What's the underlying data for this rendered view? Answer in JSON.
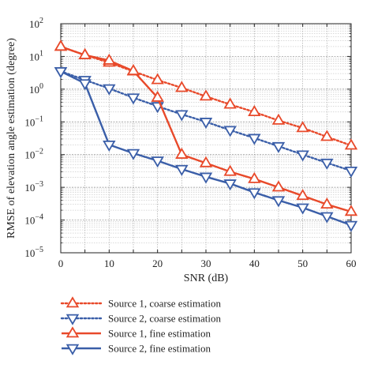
{
  "chart_data": {
    "type": "line",
    "title": "",
    "xlabel": "SNR (dB)",
    "ylabel": "RMSE of elevation angle estimation (degree)",
    "xlim": [
      0,
      60
    ],
    "ylim_exp": [
      -5,
      2
    ],
    "y_scale": "log",
    "grid": true,
    "x_ticks": [
      0,
      10,
      20,
      30,
      40,
      50,
      60
    ],
    "y_ticks": [
      {
        "base": "10",
        "exp": "2"
      },
      {
        "base": "10",
        "exp": "1"
      },
      {
        "base": "10",
        "exp": "0"
      },
      {
        "base": "10",
        "exp": "−1"
      },
      {
        "base": "10",
        "exp": "−2"
      },
      {
        "base": "10",
        "exp": "−3"
      },
      {
        "base": "10",
        "exp": "−4"
      },
      {
        "base": "10",
        "exp": "−5"
      }
    ],
    "x": [
      0,
      5,
      10,
      15,
      20,
      25,
      30,
      35,
      40,
      45,
      50,
      55,
      60
    ],
    "legend_position": "below",
    "series": [
      {
        "name": "Source 1, coarse estimation",
        "color": "#e8492a",
        "line": "dotted",
        "marker": "triangle-up",
        "values": [
          20,
          11,
          6.5,
          3.5,
          1.9,
          1.1,
          0.6,
          0.34,
          0.2,
          0.11,
          0.065,
          0.035,
          0.019
        ]
      },
      {
        "name": "Source 2, coarse estimation",
        "color": "#3a5ea8",
        "line": "dotted",
        "marker": "triangle-down",
        "values": [
          3.5,
          1.9,
          1.05,
          0.55,
          0.3,
          0.17,
          0.1,
          0.056,
          0.032,
          0.018,
          0.01,
          0.0056,
          0.0032
        ]
      },
      {
        "name": "Source 1, fine estimation",
        "color": "#e8492a",
        "line": "solid",
        "marker": "triangle-up",
        "values": [
          20,
          11,
          7.5,
          3.6,
          0.55,
          0.01,
          0.0055,
          0.003,
          0.0018,
          0.001,
          0.00055,
          0.0003,
          0.00018
        ]
      },
      {
        "name": "Source 2, fine estimation",
        "color": "#3a5ea8",
        "line": "solid",
        "marker": "triangle-down",
        "values": [
          3.5,
          1.5,
          0.02,
          0.011,
          0.0065,
          0.0036,
          0.0021,
          0.0013,
          0.0007,
          0.0004,
          0.00024,
          0.00013,
          7e-05
        ]
      }
    ]
  }
}
